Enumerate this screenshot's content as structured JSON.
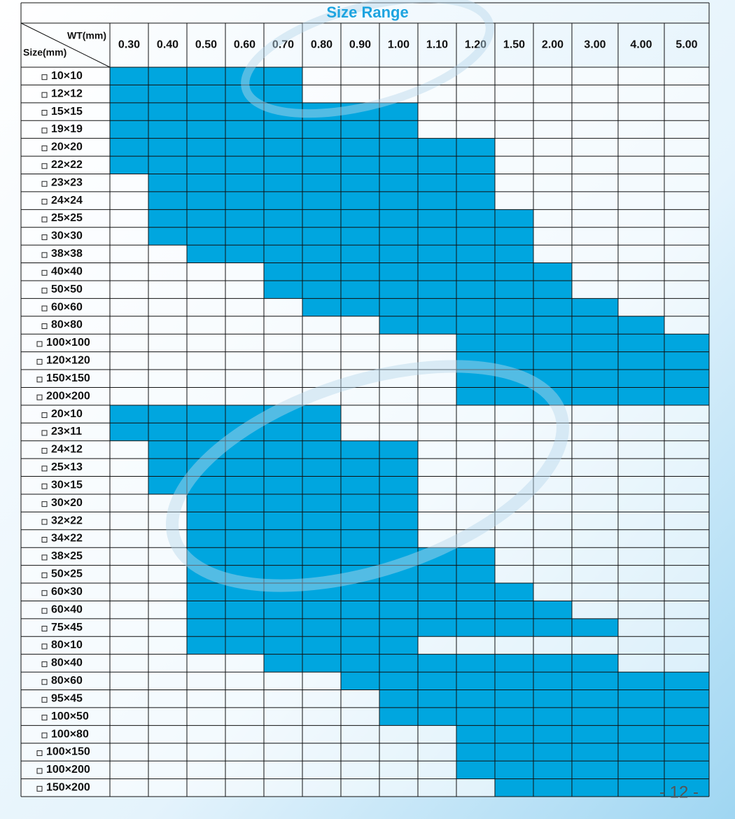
{
  "title": "Size Range",
  "header": {
    "wt_label": "WT(mm)",
    "size_label": "Size(mm)"
  },
  "columns": [
    "0.30",
    "0.40",
    "0.50",
    "0.60",
    "0.70",
    "0.80",
    "0.90",
    "1.00",
    "1.10",
    "1.20",
    "1.50",
    "2.00",
    "3.00",
    "4.00",
    "5.00"
  ],
  "rows": [
    {
      "size": "10×10",
      "range": [
        "0.30",
        "0.70"
      ]
    },
    {
      "size": "12×12",
      "range": [
        "0.30",
        "0.70"
      ]
    },
    {
      "size": "15×15",
      "range": [
        "0.30",
        "1.00"
      ]
    },
    {
      "size": "19×19",
      "range": [
        "0.30",
        "1.00"
      ]
    },
    {
      "size": "20×20",
      "range": [
        "0.30",
        "1.20"
      ]
    },
    {
      "size": "22×22",
      "range": [
        "0.30",
        "1.20"
      ]
    },
    {
      "size": "23×23",
      "range": [
        "0.40",
        "1.20"
      ]
    },
    {
      "size": "24×24",
      "range": [
        "0.40",
        "1.20"
      ]
    },
    {
      "size": "25×25",
      "range": [
        "0.40",
        "1.50"
      ]
    },
    {
      "size": "30×30",
      "range": [
        "0.40",
        "1.50"
      ]
    },
    {
      "size": "38×38",
      "range": [
        "0.50",
        "1.50"
      ]
    },
    {
      "size": "40×40",
      "range": [
        "0.70",
        "2.00"
      ]
    },
    {
      "size": "50×50",
      "range": [
        "0.70",
        "2.00"
      ]
    },
    {
      "size": "60×60",
      "range": [
        "0.80",
        "3.00"
      ]
    },
    {
      "size": "80×80",
      "range": [
        "1.00",
        "4.00"
      ]
    },
    {
      "size": "100×100",
      "range": [
        "1.20",
        "5.00"
      ]
    },
    {
      "size": "120×120",
      "range": [
        "1.20",
        "5.00"
      ]
    },
    {
      "size": "150×150",
      "range": [
        "1.20",
        "5.00"
      ]
    },
    {
      "size": "200×200",
      "range": [
        "1.20",
        "5.00"
      ]
    },
    {
      "size": "20×10",
      "range": [
        "0.30",
        "0.80"
      ]
    },
    {
      "size": "23×11",
      "range": [
        "0.30",
        "0.80"
      ]
    },
    {
      "size": "24×12",
      "range": [
        "0.40",
        "1.00"
      ]
    },
    {
      "size": "25×13",
      "range": [
        "0.40",
        "1.00"
      ]
    },
    {
      "size": "30×15",
      "range": [
        "0.40",
        "1.00"
      ]
    },
    {
      "size": "30×20",
      "range": [
        "0.50",
        "1.00"
      ]
    },
    {
      "size": "32×22",
      "range": [
        "0.50",
        "1.00"
      ]
    },
    {
      "size": "34×22",
      "range": [
        "0.50",
        "1.00"
      ]
    },
    {
      "size": "38×25",
      "range": [
        "0.50",
        "1.20"
      ]
    },
    {
      "size": "50×25",
      "range": [
        "0.50",
        "1.20"
      ]
    },
    {
      "size": "60×30",
      "range": [
        "0.50",
        "1.50"
      ]
    },
    {
      "size": "60×40",
      "range": [
        "0.50",
        "2.00"
      ]
    },
    {
      "size": "75×45",
      "range": [
        "0.50",
        "3.00"
      ]
    },
    {
      "size": "80×10",
      "range": [
        "0.50",
        "1.00"
      ]
    },
    {
      "size": "80×40",
      "range": [
        "0.70",
        "3.00"
      ]
    },
    {
      "size": "80×60",
      "range": [
        "0.90",
        "5.00"
      ]
    },
    {
      "size": "95×45",
      "range": [
        "1.00",
        "5.00"
      ]
    },
    {
      "size": "100×50",
      "range": [
        "1.00",
        "5.00"
      ]
    },
    {
      "size": "100×80",
      "range": [
        "1.20",
        "5.00"
      ]
    },
    {
      "size": "100×150",
      "range": [
        "1.20",
        "5.00"
      ]
    },
    {
      "size": "100×200",
      "range": [
        "1.20",
        "5.00"
      ]
    },
    {
      "size": "150×200",
      "range": [
        "1.50",
        "5.00"
      ]
    }
  ],
  "page_number": "- 12 -"
}
